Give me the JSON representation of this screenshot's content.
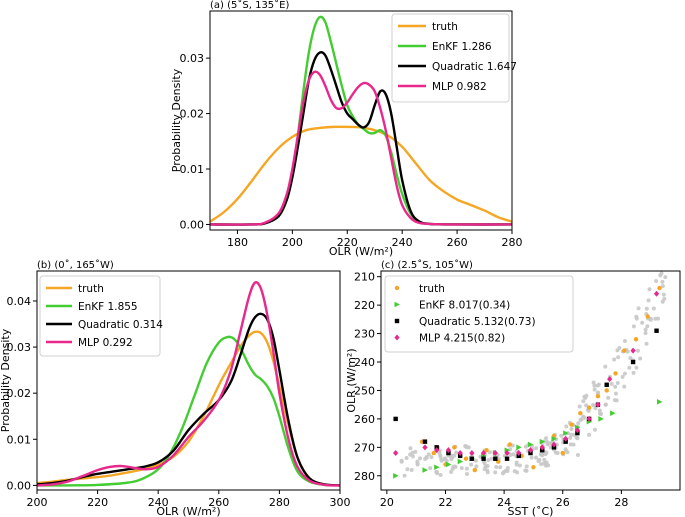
{
  "chart_data": [
    {
      "type": "line",
      "panel": "a",
      "title": "(a) (5˚S, 135˚E)",
      "xlabel": "OLR (W/m²)",
      "ylabel": "Probability Density",
      "xlim": [
        170,
        280
      ],
      "ylim": [
        -0.001,
        0.0385
      ],
      "xticks": [
        180,
        200,
        220,
        240,
        260,
        280
      ],
      "yticks": [
        0.0,
        0.01,
        0.02,
        0.03
      ],
      "ytick_labels": [
        "0.00",
        "0.01",
        "0.02",
        "0.03"
      ],
      "legend_position": "top-right",
      "series": [
        {
          "name": "truth",
          "label": "truth",
          "color": "#f5a623",
          "x": [
            170,
            175,
            180,
            185,
            190,
            195,
            200,
            205,
            210,
            215,
            220,
            225,
            230,
            235,
            240,
            245,
            250,
            255,
            260,
            265,
            270,
            275,
            280
          ],
          "y": [
            0.0005,
            0.0022,
            0.0046,
            0.0077,
            0.011,
            0.0138,
            0.0158,
            0.017,
            0.0174,
            0.0176,
            0.0176,
            0.0175,
            0.017,
            0.016,
            0.014,
            0.011,
            0.008,
            0.006,
            0.0045,
            0.0035,
            0.0025,
            0.0013,
            0.0005
          ]
        },
        {
          "name": "EnKF",
          "label": "EnKF 1.286",
          "color": "#44cc33",
          "x": [
            170,
            185,
            190,
            195,
            198,
            200,
            202,
            204,
            206,
            208,
            210,
            212,
            214,
            216,
            218,
            220,
            222,
            224,
            226,
            228,
            230,
            232,
            234,
            236,
            238,
            240,
            243,
            246,
            250,
            260,
            280
          ],
          "y": [
            0,
            0,
            0.0002,
            0.0015,
            0.0045,
            0.009,
            0.016,
            0.024,
            0.031,
            0.0355,
            0.0374,
            0.0365,
            0.033,
            0.029,
            0.025,
            0.0215,
            0.0195,
            0.018,
            0.0172,
            0.0165,
            0.0165,
            0.017,
            0.016,
            0.013,
            0.009,
            0.0055,
            0.002,
            0.0005,
            0.0001,
            0,
            0
          ]
        },
        {
          "name": "Quadratic",
          "label": "Quadratic 1.647",
          "color": "#000000",
          "x": [
            170,
            185,
            190,
            195,
            198,
            200,
            202,
            204,
            206,
            208,
            210,
            212,
            214,
            216,
            218,
            220,
            222,
            224,
            226,
            228,
            230,
            232,
            234,
            236,
            238,
            240,
            243,
            246,
            250,
            260,
            280
          ],
          "y": [
            0,
            0,
            0.0002,
            0.0015,
            0.0045,
            0.0085,
            0.014,
            0.02,
            0.026,
            0.0296,
            0.031,
            0.0305,
            0.028,
            0.025,
            0.022,
            0.02,
            0.019,
            0.018,
            0.0175,
            0.0185,
            0.0215,
            0.024,
            0.0235,
            0.02,
            0.014,
            0.008,
            0.0025,
            0.0006,
            0.0001,
            0,
            0
          ]
        },
        {
          "name": "MLP",
          "label": "MLP  0.982",
          "color": "#e8288c",
          "x": [
            170,
            185,
            190,
            195,
            198,
            200,
            202,
            204,
            206,
            208,
            210,
            212,
            214,
            216,
            218,
            220,
            222,
            224,
            226,
            228,
            230,
            232,
            234,
            236,
            238,
            240,
            243,
            246,
            250,
            260,
            280
          ],
          "y": [
            0,
            0,
            0.0003,
            0.002,
            0.0055,
            0.01,
            0.016,
            0.022,
            0.026,
            0.0275,
            0.027,
            0.025,
            0.0225,
            0.021,
            0.021,
            0.022,
            0.0235,
            0.0248,
            0.0255,
            0.0252,
            0.024,
            0.021,
            0.017,
            0.012,
            0.007,
            0.0035,
            0.0012,
            0.0003,
            0.0001,
            0,
            0
          ]
        }
      ]
    },
    {
      "type": "line",
      "panel": "b",
      "title": "(b) (0˚, 165˚W)",
      "xlabel": "OLR (W/m²)",
      "ylabel": "Probability Density",
      "xlim": [
        200,
        300
      ],
      "ylim": [
        -0.001,
        0.0465
      ],
      "xticks": [
        200,
        220,
        240,
        260,
        280,
        300
      ],
      "yticks": [
        0.0,
        0.01,
        0.02,
        0.03,
        0.04
      ],
      "ytick_labels": [
        "0.00",
        "0.01",
        "0.02",
        "0.03",
        "0.04"
      ],
      "legend_position": "top-left",
      "series": [
        {
          "name": "truth",
          "label": "truth",
          "color": "#f5a623",
          "x": [
            200,
            205,
            210,
            215,
            220,
            225,
            230,
            235,
            240,
            245,
            250,
            255,
            258,
            261,
            264,
            267,
            270,
            272,
            274,
            276,
            278,
            280,
            283,
            286,
            290,
            295,
            300
          ],
          "y": [
            0.0005,
            0.0008,
            0.0012,
            0.0015,
            0.0018,
            0.0022,
            0.0028,
            0.0035,
            0.0045,
            0.0062,
            0.0095,
            0.015,
            0.019,
            0.023,
            0.0265,
            0.03,
            0.0325,
            0.0333,
            0.033,
            0.031,
            0.027,
            0.0215,
            0.013,
            0.006,
            0.0015,
            0.0002,
            0
          ]
        },
        {
          "name": "EnKF",
          "label": "EnKF 1.855",
          "color": "#44cc33",
          "x": [
            200,
            210,
            220,
            230,
            235,
            240,
            244,
            248,
            252,
            256,
            260,
            263,
            265,
            267,
            270,
            272,
            274,
            276,
            278,
            280,
            283,
            286,
            290,
            295,
            300
          ],
          "y": [
            0,
            0,
            0.0001,
            0.0006,
            0.0015,
            0.0035,
            0.007,
            0.0125,
            0.0195,
            0.0265,
            0.031,
            0.0322,
            0.0318,
            0.03,
            0.026,
            0.024,
            0.023,
            0.0215,
            0.019,
            0.015,
            0.008,
            0.003,
            0.0008,
            0.0001,
            0
          ]
        },
        {
          "name": "Quadratic",
          "label": "Quadratic 0.314",
          "color": "#000000",
          "x": [
            200,
            205,
            210,
            215,
            220,
            225,
            230,
            235,
            240,
            245,
            250,
            255,
            260,
            264,
            267,
            270,
            272,
            274,
            276,
            278,
            280,
            283,
            286,
            290,
            295,
            300
          ],
          "y": [
            0.0002,
            0.0005,
            0.001,
            0.0018,
            0.0025,
            0.003,
            0.0035,
            0.004,
            0.005,
            0.0075,
            0.012,
            0.0155,
            0.0185,
            0.0225,
            0.028,
            0.034,
            0.0365,
            0.0372,
            0.036,
            0.032,
            0.025,
            0.014,
            0.006,
            0.0015,
            0.0002,
            0
          ]
        },
        {
          "name": "MLP",
          "label": "MLP  0.292",
          "color": "#e8288c",
          "x": [
            200,
            205,
            210,
            215,
            220,
            224,
            228,
            232,
            236,
            240,
            245,
            250,
            255,
            260,
            264,
            267,
            270,
            272,
            274,
            276,
            278,
            280,
            283,
            286,
            290,
            295,
            300
          ],
          "y": [
            0,
            0.0002,
            0.0008,
            0.002,
            0.0033,
            0.004,
            0.0042,
            0.0038,
            0.0035,
            0.004,
            0.0065,
            0.0105,
            0.014,
            0.0185,
            0.025,
            0.033,
            0.041,
            0.044,
            0.0425,
            0.037,
            0.029,
            0.02,
            0.01,
            0.004,
            0.001,
            0.0001,
            0
          ]
        }
      ]
    },
    {
      "type": "scatter",
      "panel": "c",
      "title": "(c) (2.5˚S, 105˚W)",
      "xlabel": "SST (˚C)",
      "ylabel": "OLR (W/m²)",
      "xlim": [
        19.8,
        30.0
      ],
      "ylim": [
        285,
        208
      ],
      "xticks": [
        20,
        22,
        24,
        26,
        28
      ],
      "yticks": [
        210,
        220,
        230,
        240,
        250,
        260,
        270,
        280
      ],
      "legend_position": "top-left",
      "background_color": "#c8c8c8",
      "series": [
        {
          "name": "truth",
          "label": "truth",
          "color": "#f5a623",
          "marker": "circle",
          "x": [
            21.2,
            21.6,
            22.0,
            22.3,
            22.7,
            23.0,
            23.4,
            23.8,
            24.2,
            24.6,
            25.0,
            25.3,
            25.7,
            26.0,
            26.3,
            26.6,
            26.9,
            27.2,
            27.5,
            27.8,
            28.1,
            28.5,
            28.9,
            29.3
          ],
          "y": [
            268,
            272,
            276,
            270,
            274,
            278,
            271,
            275,
            269,
            273,
            277,
            270,
            266,
            272,
            262,
            258,
            256,
            252,
            250,
            244,
            236,
            232,
            224,
            214
          ]
        },
        {
          "name": "EnKF",
          "label": "EnKF  8.017(0.34)",
          "color": "#44cc33",
          "marker": "triangle",
          "x": [
            20.3,
            21.3,
            21.7,
            22.1,
            22.5,
            22.9,
            23.3,
            23.7,
            24.1,
            24.5,
            24.9,
            25.3,
            25.7,
            26.1,
            26.5,
            26.9,
            27.3,
            27.7,
            29.3
          ],
          "y": [
            280,
            278,
            277,
            276,
            275,
            274,
            273,
            272,
            271,
            270,
            269,
            268,
            267,
            265,
            263,
            261,
            260,
            258,
            254
          ]
        },
        {
          "name": "Quadratic",
          "label": "Quadratic  5.132(0.73)",
          "color": "#000000",
          "marker": "square",
          "x": [
            20.3,
            21.3,
            21.7,
            22.1,
            22.5,
            22.9,
            23.3,
            23.7,
            24.1,
            24.5,
            24.9,
            25.3,
            25.7,
            26.1,
            26.5,
            26.9,
            27.2,
            27.5,
            28.4,
            29.2
          ],
          "y": [
            260,
            268,
            270,
            272,
            273,
            274,
            274,
            274,
            274,
            273,
            272,
            271,
            270,
            268,
            265,
            260,
            255,
            248,
            240,
            229
          ]
        },
        {
          "name": "MLP",
          "label": "MLP  4.215(0.82)",
          "color": "#e8288c",
          "marker": "diamond",
          "x": [
            20.3,
            21.3,
            21.7,
            22.1,
            22.5,
            22.9,
            23.3,
            23.7,
            24.1,
            24.5,
            24.9,
            25.3,
            25.7,
            26.1,
            26.5,
            26.9,
            27.2,
            27.6,
            28.4,
            29.2
          ],
          "y": [
            272,
            270,
            271,
            271,
            272,
            272,
            272,
            272,
            272,
            272,
            271,
            270,
            269,
            267,
            264,
            260,
            255,
            246,
            236,
            216
          ]
        }
      ]
    }
  ]
}
